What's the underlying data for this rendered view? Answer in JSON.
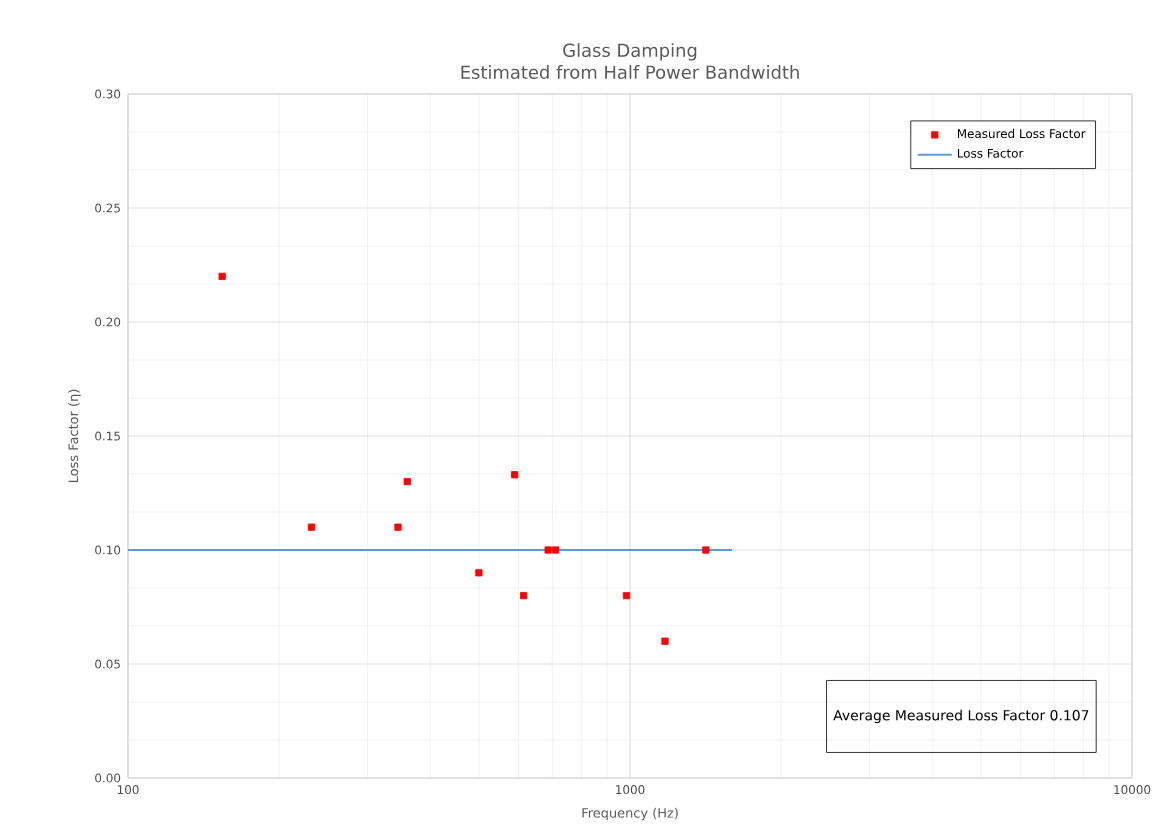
{
  "chart_data": {
    "type": "scatter",
    "title": "Glass Damping",
    "subtitle": "Estimated from Half Power Bandwidth",
    "xlabel": "Frequency (Hz)",
    "ylabel": "Loss Factor (η)",
    "series": [
      {
        "name": "Measured Loss Factor",
        "color": "#ff0000",
        "marker": "square",
        "x": [
          154,
          232,
          345,
          360,
          500,
          589,
          614,
          687,
          711,
          984,
          1174,
          1416
        ],
        "values": [
          0.22,
          0.11,
          0.11,
          0.13,
          0.09,
          0.133,
          0.08,
          0.1,
          0.1,
          0.08,
          0.06,
          0.1
        ]
      },
      {
        "name": "Loss Factor",
        "type": "line",
        "color": "#5b9bd5",
        "marker": "none",
        "x": [
          100,
          1596
        ],
        "values": [
          0.1,
          0.1
        ]
      }
    ],
    "log": "x",
    "xlim": [
      100,
      10000
    ],
    "xticks": [
      100,
      1000,
      10000
    ],
    "ylim": [
      0,
      0.3
    ],
    "yticks": [
      {
        "value": 0,
        "label": "0.00"
      },
      {
        "value": 0.05,
        "label": "0.05"
      },
      {
        "value": 0.1,
        "label": "0.10"
      },
      {
        "value": 0.15,
        "label": "0.15"
      },
      {
        "value": 0.2,
        "label": "0.20"
      },
      {
        "value": 0.25,
        "label": "0.25"
      },
      {
        "value": 0.3,
        "label": "0.30"
      }
    ],
    "grid": true,
    "legend": "top right",
    "annotations": [
      "Average Measured Loss Factor 0.107"
    ]
  }
}
